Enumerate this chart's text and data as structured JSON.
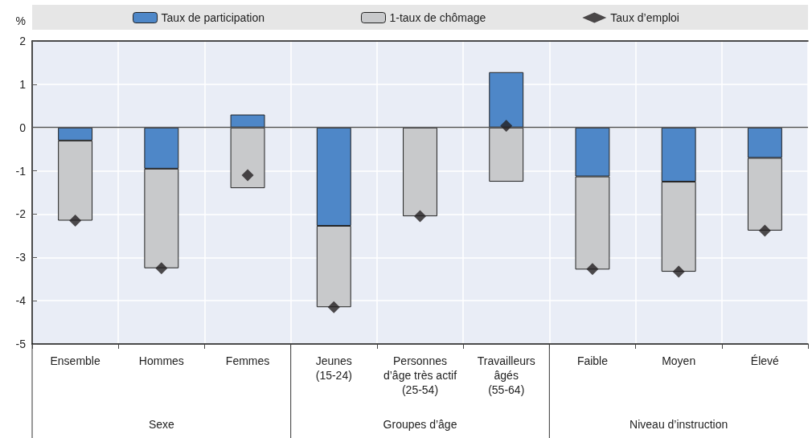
{
  "chart_data": {
    "type": "bar",
    "stacked": true,
    "ylabel": "%",
    "categories": [
      "Ensemble",
      "Hommes",
      "Femmes",
      "Jeunes\n(15-24)",
      "Personnes\nd’âge très actif\n(25-54)",
      "Travailleurs\nâgés\n(55-64)",
      "Faible",
      "Moyen",
      "Élevé"
    ],
    "series": [
      {
        "name": "Taux de participation",
        "color": "#4e87c8",
        "values": [
          -0.3,
          -0.95,
          0.3,
          -2.27,
          0,
          1.28,
          -1.13,
          -1.25,
          -0.7
        ]
      },
      {
        "name": "1-taux de chômage",
        "color": "#c8c9cb",
        "values": [
          -1.85,
          -2.3,
          -1.4,
          -1.88,
          -2.05,
          -1.25,
          -2.15,
          -2.08,
          -1.68
        ]
      },
      {
        "name": "Taux d’emploi",
        "type": "scatter",
        "marker": "diamond",
        "color": "#231f20",
        "values": [
          -2.15,
          -3.25,
          -1.1,
          -4.15,
          -2.05,
          0.04,
          -3.27,
          -3.33,
          -2.38
        ]
      }
    ],
    "ylim": [
      -5,
      2
    ],
    "yticks": [
      -5,
      -4,
      -3,
      -2,
      -1,
      0,
      1,
      2
    ],
    "grid": true,
    "legend": "top",
    "ref_lines": [
      {
        "axis": "y",
        "value": 0,
        "color": "#555555"
      }
    ],
    "annotations": [
      "Sexe",
      "Groupes d’âge",
      "Niveau d’instruction"
    ]
  }
}
